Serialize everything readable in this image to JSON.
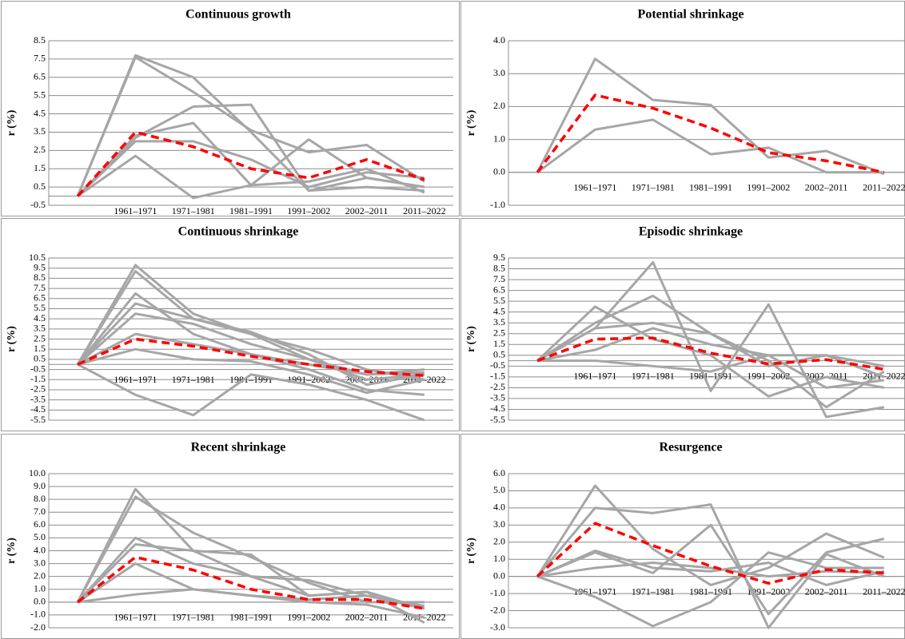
{
  "chart_data": [
    {
      "type": "line",
      "title": "Continuous growth",
      "ylabel": "r (%)",
      "categories": [
        null,
        "1961–1971",
        "1971–1981",
        "1981–1991",
        "1991–2002",
        "2002–2011",
        "2011–2022"
      ],
      "ylim": [
        -0.5,
        8.5
      ],
      "yticks": [
        -0.5,
        0.5,
        1.5,
        2.5,
        3.5,
        4.5,
        5.5,
        6.5,
        7.5,
        8.5
      ],
      "grid": true,
      "series": [
        {
          "color": "#a6a6a6",
          "values": [
            0,
            7.7,
            6.5,
            3.5,
            0.3,
            1.0,
            0.5
          ]
        },
        {
          "color": "#a6a6a6",
          "values": [
            0,
            7.6,
            5.7,
            3.6,
            2.4,
            2.8,
            0.8
          ]
        },
        {
          "color": "#a6a6a6",
          "values": [
            0,
            3.2,
            4.9,
            5.0,
            0.3,
            0.5,
            0.3
          ]
        },
        {
          "color": "#a6a6a6",
          "values": [
            0,
            3.3,
            4.0,
            0.6,
            3.1,
            1.0,
            0.5
          ]
        },
        {
          "color": "#a6a6a6",
          "values": [
            0,
            2.2,
            -0.1,
            0.6,
            0.8,
            1.5,
            0.2
          ]
        },
        {
          "color": "#a6a6a6",
          "values": [
            0,
            3.0,
            3.0,
            2.0,
            0.5,
            1.3,
            1.0
          ]
        },
        {
          "color": "#ff0000",
          "dashed": true,
          "values": [
            0,
            3.5,
            2.7,
            1.5,
            1.0,
            2.0,
            0.9
          ]
        }
      ]
    },
    {
      "type": "line",
      "title": "Potential shrinkage",
      "ylabel": "r (%)",
      "categories": [
        null,
        "1961–1971",
        "1971–1981",
        "1981–1991",
        "1991–2002",
        "2002–2011",
        "2011–2022"
      ],
      "ylim": [
        -1,
        4
      ],
      "yticks": [
        {
          "value": -1,
          "label": "-1.0"
        },
        {
          "value": 0,
          "label": "0.0"
        },
        {
          "value": 1,
          "label": "1.0"
        },
        {
          "value": 2,
          "label": "2.0"
        },
        {
          "value": 3,
          "label": "3.0"
        },
        {
          "value": 4,
          "label": "4.0"
        }
      ],
      "grid": true,
      "series": [
        {
          "color": "#a6a6a6",
          "values": [
            0,
            3.45,
            2.2,
            2.05,
            0.45,
            0.65,
            -0.05
          ]
        },
        {
          "color": "#a6a6a6",
          "values": [
            0,
            1.3,
            1.6,
            0.55,
            0.75,
            0,
            0
          ]
        },
        {
          "color": "#ff0000",
          "dashed": true,
          "values": [
            0,
            2.35,
            1.95,
            1.35,
            0.6,
            0.35,
            0
          ]
        }
      ]
    },
    {
      "type": "line",
      "title": "Continuous shrinkage",
      "ylabel": "r (%)",
      "categories": [
        null,
        "1961–1971",
        "1971–1981",
        "1981–1991",
        "1991–2002",
        "2002–2011",
        "2011–2022"
      ],
      "ylim": [
        -5.5,
        10.5
      ],
      "yticks": [
        -5.5,
        -4.5,
        -3.5,
        -2.5,
        -1.5,
        -0.5,
        0.5,
        1.5,
        2.5,
        3.5,
        4.5,
        5.5,
        6.5,
        7.5,
        8.5,
        9.5,
        10.5
      ],
      "grid": true,
      "series": [
        {
          "color": "#a6a6a6",
          "values": [
            0,
            9.8,
            5,
            3,
            0.5,
            -1.5,
            -1
          ]
        },
        {
          "color": "#a6a6a6",
          "values": [
            0,
            9.2,
            4.5,
            3.2,
            1,
            -2,
            -1
          ]
        },
        {
          "color": "#a6a6a6",
          "values": [
            0,
            7,
            3,
            1,
            -0.5,
            -2.5,
            -3
          ]
        },
        {
          "color": "#a6a6a6",
          "values": [
            0,
            5,
            4,
            2,
            0.5,
            -1,
            -0.8
          ]
        },
        {
          "color": "#a6a6a6",
          "values": [
            0,
            3,
            2,
            1,
            0,
            -1,
            -0.5
          ]
        },
        {
          "color": "#a6a6a6",
          "values": [
            0,
            -3,
            -5,
            -1,
            -2,
            -3.5,
            -5.5
          ]
        },
        {
          "color": "#a6a6a6",
          "values": [
            0,
            1.5,
            0.5,
            0.3,
            -1,
            -2.8,
            -1.5
          ]
        },
        {
          "color": "#a6a6a6",
          "values": [
            0,
            6,
            4.5,
            3,
            1.5,
            -0.5,
            -1.5
          ]
        },
        {
          "color": "#ff0000",
          "dashed": true,
          "values": [
            0,
            2.5,
            1.8,
            0.8,
            0,
            -0.7,
            -1.1
          ]
        }
      ]
    },
    {
      "type": "line",
      "title": "Episodic shrinkage",
      "ylabel": "r (%)",
      "categories": [
        null,
        "1961–1971",
        "1971–1981",
        "1981–1991",
        "1991–2002",
        "2002–2011",
        "2011–2022"
      ],
      "ylim": [
        -5.5,
        9.5
      ],
      "yticks": [
        -5.5,
        -4.5,
        -3.5,
        -2.5,
        -1.5,
        -0.5,
        0.5,
        1.5,
        2.5,
        3.5,
        4.5,
        5.5,
        6.5,
        7.5,
        8.5,
        9.5
      ],
      "grid": true,
      "series": [
        {
          "color": "#a6a6a6",
          "values": [
            0,
            5,
            2,
            0.5,
            -3.3,
            -1.5,
            -2.5
          ]
        },
        {
          "color": "#a6a6a6",
          "values": [
            0,
            3,
            9.1,
            -2.8,
            5.2,
            -5.2,
            -4.3
          ]
        },
        {
          "color": "#a6a6a6",
          "values": [
            0,
            3.5,
            6,
            2.5,
            0,
            -4.3,
            -1
          ]
        },
        {
          "color": "#a6a6a6",
          "values": [
            0,
            1,
            3,
            1.5,
            0.5,
            -2.5,
            -1.8
          ]
        },
        {
          "color": "#a6a6a6",
          "values": [
            0,
            0,
            -0.5,
            -1,
            0.5,
            0.5,
            -1.5
          ]
        },
        {
          "color": "#a6a6a6",
          "values": [
            0,
            3,
            3.5,
            2.5,
            -0.5,
            0.5,
            -0.5
          ]
        },
        {
          "color": "#ff0000",
          "dashed": true,
          "values": [
            0,
            2,
            2.1,
            0.7,
            -0.3,
            0.1,
            -0.8
          ]
        }
      ]
    },
    {
      "type": "line",
      "title": "Recent shrinkage",
      "ylabel": "r (%)",
      "categories": [
        null,
        "1961–1971",
        "1971–1981",
        "1981–1991",
        "1991–2002",
        "2002–2011",
        "2011–2022"
      ],
      "ylim": [
        -2,
        10
      ],
      "yticks": [
        {
          "value": -2,
          "label": "-2.0"
        },
        {
          "value": -1,
          "label": "-1.0"
        },
        {
          "value": 0,
          "label": "0.0"
        },
        {
          "value": 1,
          "label": "1.0"
        },
        {
          "value": 2,
          "label": "2.0"
        },
        {
          "value": 3,
          "label": "3.0"
        },
        {
          "value": 4,
          "label": "4.0"
        },
        {
          "value": 5,
          "label": "5.0"
        },
        {
          "value": 6,
          "label": "6.0"
        },
        {
          "value": 7,
          "label": "7.0"
        },
        {
          "value": 8,
          "label": "8.0"
        },
        {
          "value": 9,
          "label": "9.0"
        },
        {
          "value": 10,
          "label": "10.0"
        }
      ],
      "grid": true,
      "series": [
        {
          "color": "#a6a6a6",
          "values": [
            0,
            8.8,
            4.0,
            3.7,
            0.5,
            0.8,
            -1.6
          ]
        },
        {
          "color": "#a6a6a6",
          "values": [
            0,
            8.2,
            5.4,
            3.5,
            1.5,
            0,
            0
          ]
        },
        {
          "color": "#a6a6a6",
          "values": [
            0,
            5,
            3,
            2,
            1.7,
            0.5,
            -0.5
          ]
        },
        {
          "color": "#a6a6a6",
          "values": [
            0,
            3,
            1,
            0.5,
            0.2,
            0.5,
            -0.3
          ]
        },
        {
          "color": "#a6a6a6",
          "values": [
            0,
            0.6,
            1,
            0.5,
            0,
            -0.2,
            -1.2
          ]
        },
        {
          "color": "#a6a6a6",
          "values": [
            0,
            4.5,
            4,
            2,
            0.5,
            0.8,
            -0.5
          ]
        },
        {
          "color": "#ff0000",
          "dashed": true,
          "values": [
            0,
            3.5,
            2.5,
            1.0,
            0.2,
            0.2,
            -0.5
          ]
        }
      ]
    },
    {
      "type": "line",
      "title": "Resurgence",
      "ylabel": "r (%)",
      "categories": [
        null,
        "1961–1971",
        "1971–1981",
        "1981–1991",
        "1991–2002",
        "2002–2011",
        "2011–2022"
      ],
      "ylim": [
        -3,
        6
      ],
      "yticks": [
        {
          "value": -3,
          "label": "-3.0"
        },
        {
          "value": -2,
          "label": "-2.0"
        },
        {
          "value": -1,
          "label": "-1.0"
        },
        {
          "value": 0,
          "label": "0.0"
        },
        {
          "value": 1,
          "label": "1.0"
        },
        {
          "value": 2,
          "label": "2.0"
        },
        {
          "value": 3,
          "label": "3.0"
        },
        {
          "value": 4,
          "label": "4.0"
        },
        {
          "value": 5,
          "label": "5.0"
        },
        {
          "value": 6,
          "label": "6.0"
        }
      ],
      "grid": true,
      "series": [
        {
          "color": "#a6a6a6",
          "values": [
            0,
            5.3,
            1.6,
            -0.5,
            0.5,
            2.5,
            1.1
          ]
        },
        {
          "color": "#a6a6a6",
          "values": [
            0,
            4,
            3.7,
            4.2,
            -3,
            1.3,
            0
          ]
        },
        {
          "color": "#a6a6a6",
          "values": [
            0,
            1.4,
            0.2,
            3,
            -2.2,
            1.4,
            2.2
          ]
        },
        {
          "color": "#a6a6a6",
          "values": [
            0,
            -1.2,
            -2.9,
            -1.5,
            1.4,
            0.5,
            0.5
          ]
        },
        {
          "color": "#a6a6a6",
          "values": [
            0,
            0.5,
            0.8,
            0.5,
            0,
            0.3,
            0.2
          ]
        },
        {
          "color": "#a6a6a6",
          "values": [
            0,
            1.5,
            0.5,
            0.3,
            0.8,
            -0.5,
            0.3
          ]
        },
        {
          "color": "#ff0000",
          "dashed": true,
          "values": [
            0,
            3.1,
            1.8,
            0.6,
            -0.4,
            0.4,
            0.2
          ]
        }
      ]
    }
  ]
}
